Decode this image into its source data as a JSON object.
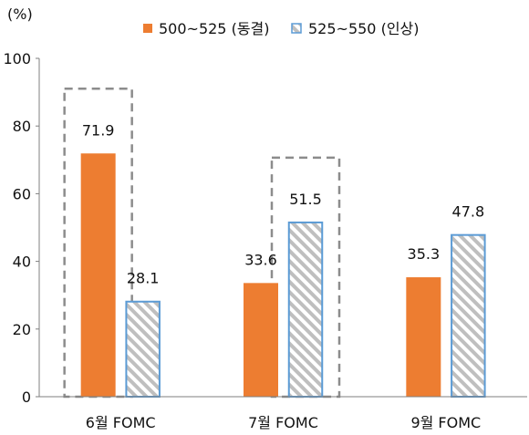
{
  "chart_data": {
    "type": "bar",
    "ylabel": "(%)",
    "ylim": [
      0,
      100
    ],
    "yticks": [
      0,
      20,
      40,
      60,
      80,
      100
    ],
    "categories": [
      "6월 FOMC",
      "7월 FOMC",
      "9월 FOMC"
    ],
    "series": [
      {
        "name": "500~525 (동결)",
        "values": [
          71.9,
          33.6,
          35.3
        ],
        "color": "#ED7D31"
      },
      {
        "name": "525~550 (인상)",
        "values": [
          28.1,
          51.5,
          47.8
        ],
        "color": "#5B9BD5",
        "fill": "hatched-gray"
      }
    ],
    "highlight_boxes": [
      {
        "category": "6월 FOMC",
        "series": "500~525 (동결)"
      },
      {
        "category": "7월 FOMC",
        "series": "525~550 (인상)"
      }
    ],
    "legend_position": "top",
    "grid": false
  }
}
